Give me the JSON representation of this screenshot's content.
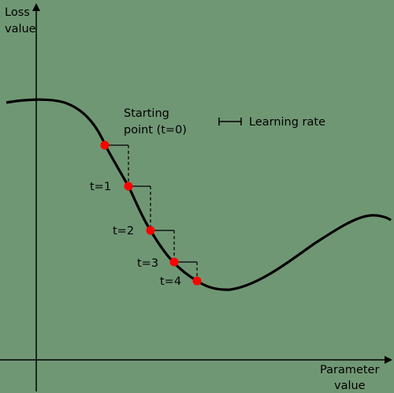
{
  "axes": {
    "y_label_line1": "Loss",
    "y_label_line2": "value",
    "x_label_line1": "Parameter",
    "x_label_line2": "value"
  },
  "start_label_line1": "Starting",
  "start_label_line2": "point (t=0)",
  "legend": {
    "label": "Learning rate"
  },
  "step_labels": [
    "t=1",
    "t=2",
    "t=3",
    "t=4"
  ],
  "colors": {
    "background": "#709774",
    "curve": "#000000",
    "point": "#ff0000"
  }
}
